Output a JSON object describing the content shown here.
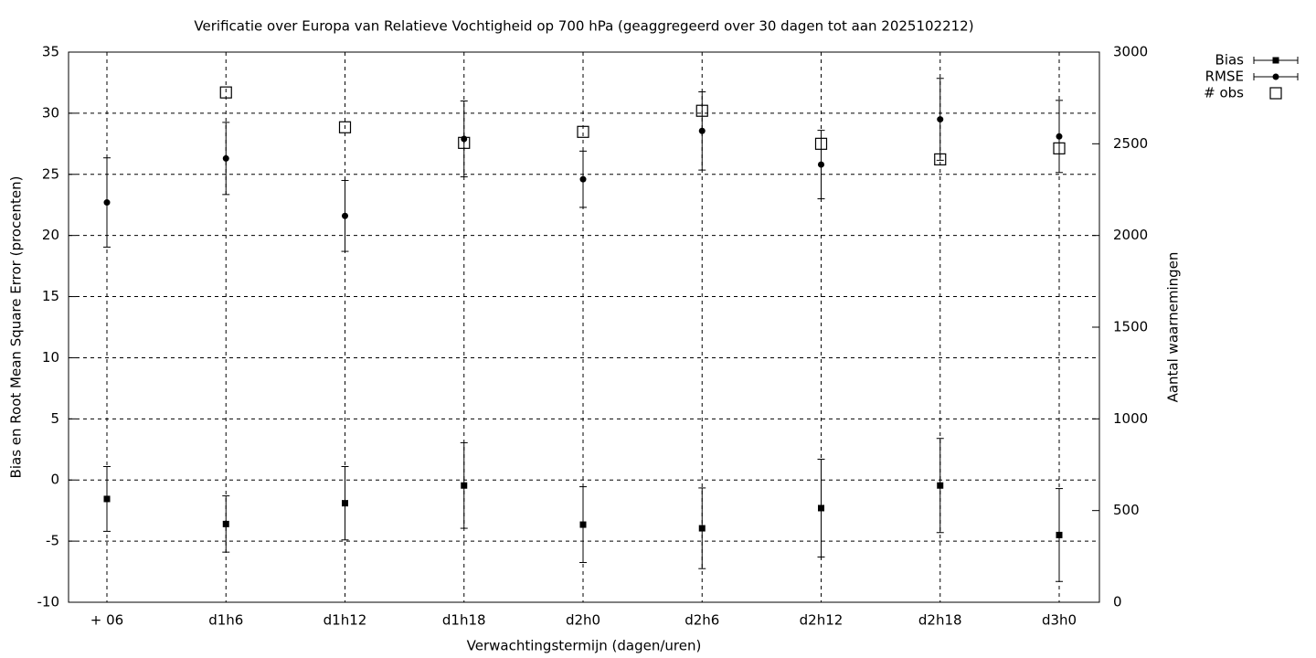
{
  "chart_data": {
    "type": "errorbar",
    "title": "Verificatie over Europa van Relatieve Vochtigheid op 700 hPa (geaggregeerd over 30 dagen tot aan 2025102212)",
    "x_label": "Verwachtingstermijn (dagen/uren)",
    "y_label": "Bias en Root Mean Square Error (procenten)",
    "y2_label": "Aantal waarnemingen",
    "categories": [
      "+ 06",
      "d1h6",
      "d1h12",
      "d1h18",
      "d2h0",
      "d2h6",
      "d2h12",
      "d2h18",
      "d3h0"
    ],
    "ylim": [
      -10,
      35
    ],
    "yticks": [
      -10,
      -5,
      0,
      5,
      10,
      15,
      20,
      25,
      30,
      35
    ],
    "y2lim": [
      0,
      3000
    ],
    "y2ticks": [
      0,
      500,
      1000,
      1500,
      2000,
      2500,
      3000
    ],
    "grid": true,
    "legend": "outside-top-right",
    "series": [
      {
        "name": "Bias",
        "color": "#000000",
        "marker": "square",
        "values": [
          -1.55,
          -3.6,
          -1.9,
          -0.45,
          -3.65,
          -3.95,
          -2.3,
          -0.45,
          -4.5
        ],
        "errors": [
          2.65,
          2.3,
          3.0,
          3.5,
          3.1,
          3.3,
          4.0,
          3.85,
          3.8
        ]
      },
      {
        "name": "RMSE",
        "color": "#000000",
        "marker": "circle",
        "values": [
          22.7,
          26.3,
          21.6,
          27.9,
          24.6,
          28.55,
          25.8,
          29.5,
          28.1
        ],
        "errors": [
          3.65,
          2.95,
          2.9,
          3.1,
          2.3,
          3.2,
          2.8,
          3.35,
          2.95
        ]
      },
      {
        "name": "# obs",
        "color": "#000000",
        "marker": "open-square",
        "axis": "y2",
        "values": [
          null,
          2780,
          2590,
          2505,
          2565,
          2680,
          2500,
          2415,
          2475
        ]
      }
    ]
  }
}
